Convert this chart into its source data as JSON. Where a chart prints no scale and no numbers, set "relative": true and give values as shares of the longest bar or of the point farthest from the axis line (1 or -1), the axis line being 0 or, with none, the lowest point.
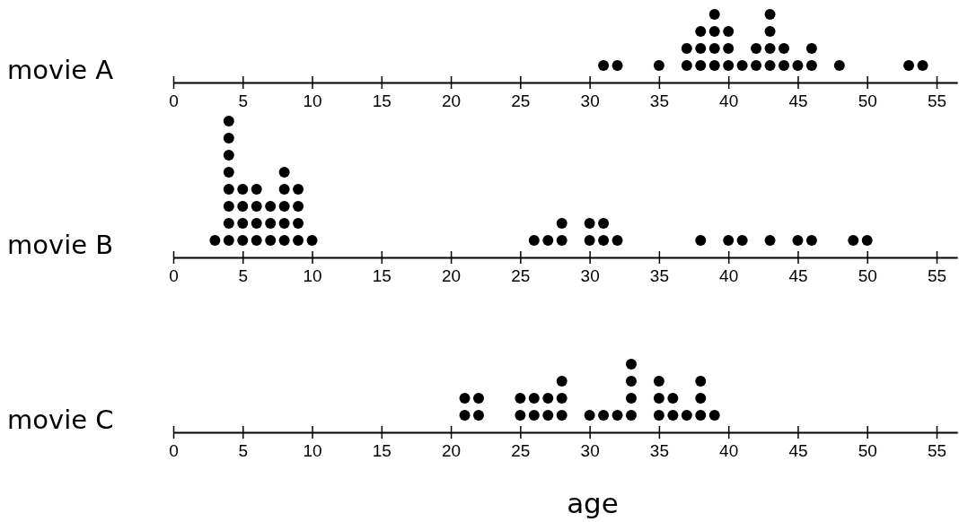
{
  "chart_data": [
    {
      "type": "scatter",
      "relative": true,
      "ylabel": "movie A",
      "marker": "circle",
      "color": "#000000",
      "grid": false,
      "tick_labels": "x",
      "xlim": [
        0,
        56.5
      ],
      "xticks": [
        0,
        5,
        10,
        15,
        20,
        25,
        30,
        35,
        40,
        45,
        50,
        55
      ],
      "x": [
        31,
        32,
        35,
        37,
        37,
        38,
        38,
        38,
        39,
        39,
        39,
        39,
        40,
        40,
        40,
        41,
        42,
        42,
        43,
        43,
        43,
        43,
        44,
        44,
        45,
        46,
        46,
        48,
        53,
        54
      ],
      "values": [
        0.25,
        0.25,
        0.25,
        0.25,
        0.5,
        0.25,
        0.5,
        0.75,
        0.25,
        0.5,
        0.75,
        1,
        0.25,
        0.5,
        0.75,
        0.25,
        0.25,
        0.5,
        0.25,
        0.5,
        0.75,
        1,
        0.25,
        0.5,
        0.25,
        0.25,
        0.5,
        0.25,
        0.25,
        0.25
      ]
    },
    {
      "type": "scatter",
      "relative": true,
      "ylabel": "movie B",
      "marker": "circle",
      "color": "#000000",
      "grid": false,
      "tick_labels": "x",
      "xlim": [
        0,
        56.5
      ],
      "xticks": [
        0,
        5,
        10,
        15,
        20,
        25,
        30,
        35,
        40,
        45,
        50,
        55
      ],
      "x": [
        3,
        4,
        4,
        4,
        4,
        4,
        4,
        4,
        4,
        5,
        5,
        5,
        5,
        6,
        6,
        6,
        6,
        7,
        7,
        7,
        8,
        8,
        8,
        8,
        8,
        9,
        9,
        9,
        9,
        10,
        26,
        27,
        28,
        28,
        30,
        30,
        31,
        31,
        32,
        38,
        40,
        41,
        43,
        45,
        46,
        49,
        50
      ],
      "values": [
        0.125,
        0.125,
        0.25,
        0.375,
        0.5,
        0.625,
        0.75,
        0.875,
        1,
        0.125,
        0.25,
        0.375,
        0.5,
        0.125,
        0.25,
        0.375,
        0.5,
        0.125,
        0.25,
        0.375,
        0.125,
        0.25,
        0.375,
        0.5,
        0.625,
        0.125,
        0.25,
        0.375,
        0.5,
        0.125,
        0.125,
        0.125,
        0.125,
        0.25,
        0.125,
        0.25,
        0.125,
        0.25,
        0.125,
        0.125,
        0.125,
        0.125,
        0.125,
        0.125,
        0.125,
        0.125,
        0.125
      ]
    },
    {
      "type": "scatter",
      "relative": true,
      "ylabel": "movie C",
      "xlabel": "age",
      "marker": "circle",
      "color": "#000000",
      "grid": false,
      "tick_labels": "x",
      "xlim": [
        0,
        56.5
      ],
      "xticks": [
        0,
        5,
        10,
        15,
        20,
        25,
        30,
        35,
        40,
        45,
        50,
        55
      ],
      "x": [
        21,
        21,
        22,
        22,
        25,
        25,
        26,
        26,
        27,
        27,
        28,
        28,
        28,
        30,
        31,
        32,
        33,
        33,
        33,
        33,
        35,
        35,
        35,
        36,
        36,
        37,
        38,
        38,
        38,
        39
      ],
      "values": [
        0.25,
        0.5,
        0.25,
        0.5,
        0.25,
        0.5,
        0.25,
        0.5,
        0.25,
        0.5,
        0.25,
        0.5,
        0.75,
        0.25,
        0.25,
        0.25,
        0.25,
        0.5,
        0.75,
        1,
        0.25,
        0.5,
        0.75,
        0.25,
        0.5,
        0.25,
        0.25,
        0.5,
        0.75,
        0.25
      ]
    }
  ]
}
